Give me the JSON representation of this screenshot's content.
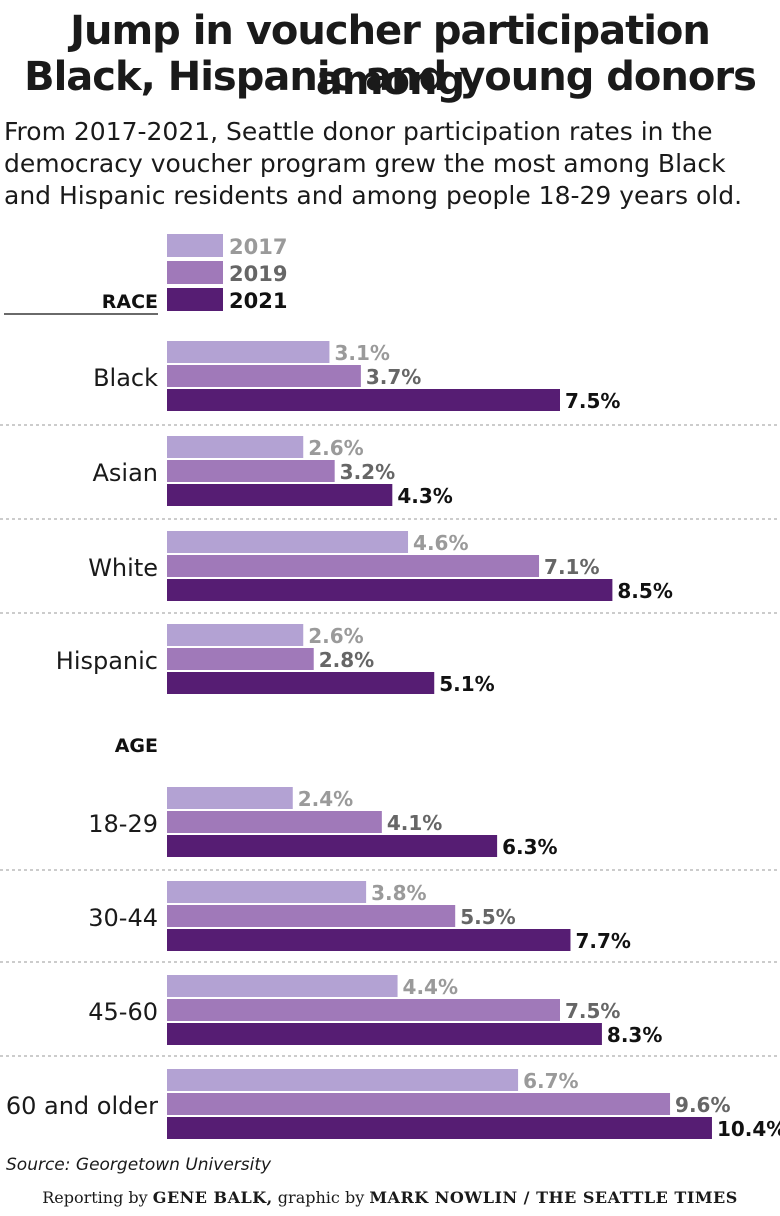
{
  "title_line1": "Jump in voucher participation among",
  "title_line2": "Black, Hispanic and young donors",
  "subtitle_line1": "From 2017-2021, Seattle donor participation rates in the",
  "subtitle_line2": "democracy voucher program grew the most among Black",
  "subtitle_line3": "and Hispanic residents and among people 18-29 years old.",
  "source": "Source: Georgetown University",
  "credit": {
    "reporting_prefix": "Reporting by ",
    "reporter": "GENE BALK,",
    "graphic_prefix": " graphic by ",
    "artist": "MARK NOWLIN / THE SEATTLE TIMES"
  },
  "colors": {
    "2017": "#b3a2d3",
    "2019": "#a079b9",
    "2021": "#561d73",
    "label_2017": "#9a9a9a",
    "label_2019": "#666666",
    "label_2021": "#111111"
  },
  "chart_data": {
    "type": "bar",
    "orientation": "horizontal",
    "unit": "%",
    "legend": [
      "2017",
      "2019",
      "2021"
    ],
    "legend_position": "top-left",
    "groups": [
      {
        "heading": "RACE",
        "categories": [
          {
            "label": "Black",
            "values": [
              3.1,
              3.7,
              7.5
            ]
          },
          {
            "label": "Asian",
            "values": [
              2.6,
              3.2,
              4.3
            ]
          },
          {
            "label": "White",
            "values": [
              4.6,
              7.1,
              8.5
            ]
          },
          {
            "label": "Hispanic",
            "values": [
              2.6,
              2.8,
              5.1
            ]
          }
        ]
      },
      {
        "heading": "AGE",
        "categories": [
          {
            "label": "18-29",
            "values": [
              2.4,
              4.1,
              6.3
            ]
          },
          {
            "label": "30-44",
            "values": [
              3.8,
              5.5,
              7.7
            ]
          },
          {
            "label": "45-60",
            "values": [
              4.4,
              7.5,
              8.3
            ]
          },
          {
            "label": "60 and older",
            "values": [
              6.7,
              9.6,
              10.4
            ]
          }
        ]
      }
    ]
  }
}
